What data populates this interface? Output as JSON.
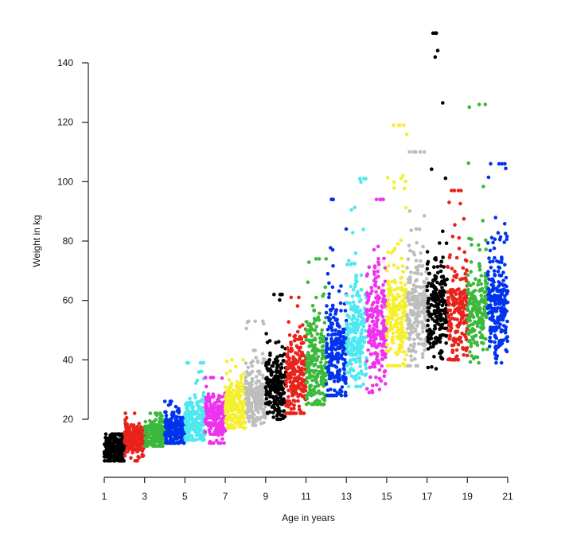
{
  "chart_data": {
    "type": "scatter",
    "title": "",
    "xlabel": "Age in years",
    "ylabel": "Weight in kg",
    "xlim": [
      1,
      21
    ],
    "ylim": [
      20,
      140
    ],
    "x_ticks": [
      "1",
      "3",
      "5",
      "7",
      "9",
      "11",
      "13",
      "15",
      "17",
      "19",
      "21"
    ],
    "y_ticks": [
      "20",
      "40",
      "60",
      "80",
      "100",
      "120",
      "140"
    ],
    "grid": false,
    "legend": "none",
    "palette": [
      "#000000",
      "#e8231c",
      "#3cb93c",
      "#0033ee",
      "#4ee8f0",
      "#ee33ee",
      "#f4f030",
      "#bdbdbd"
    ],
    "series": [
      {
        "age_group": 1,
        "x_range": [
          1.0,
          2.0
        ],
        "y_center": 10,
        "y_spread": 2.5,
        "y_min": 6,
        "y_max": 15,
        "n": 220,
        "color_index": 0
      },
      {
        "age_group": 2,
        "x_range": [
          2.0,
          3.0
        ],
        "y_center": 13,
        "y_spread": 2.5,
        "y_min": 6,
        "y_max": 22,
        "n": 220,
        "color_index": 1
      },
      {
        "age_group": 3,
        "x_range": [
          3.0,
          4.0
        ],
        "y_center": 15,
        "y_spread": 2.5,
        "y_min": 11,
        "y_max": 22,
        "n": 220,
        "color_index": 2
      },
      {
        "age_group": 4,
        "x_range": [
          4.0,
          5.0
        ],
        "y_center": 16,
        "y_spread": 3,
        "y_min": 12,
        "y_max": 26,
        "n": 220,
        "color_index": 3
      },
      {
        "age_group": 5,
        "x_range": [
          5.0,
          6.0
        ],
        "y_center": 19,
        "y_spread": 4,
        "y_min": 13,
        "y_max": 39,
        "n": 220,
        "color_index": 4
      },
      {
        "age_group": 6,
        "x_range": [
          6.0,
          7.0
        ],
        "y_center": 21,
        "y_spread": 4,
        "y_min": 12,
        "y_max": 34,
        "n": 220,
        "color_index": 5
      },
      {
        "age_group": 7,
        "x_range": [
          7.0,
          8.0
        ],
        "y_center": 24,
        "y_spread": 4.5,
        "y_min": 17,
        "y_max": 40,
        "n": 220,
        "color_index": 6
      },
      {
        "age_group": 8,
        "x_range": [
          8.0,
          9.0
        ],
        "y_center": 27,
        "y_spread": 5,
        "y_min": 18,
        "y_max": 53,
        "n": 220,
        "color_index": 7
      },
      {
        "age_group": 9,
        "x_range": [
          9.0,
          10.0
        ],
        "y_center": 31,
        "y_spread": 6,
        "y_min": 20,
        "y_max": 62,
        "n": 220,
        "color_index": 0
      },
      {
        "age_group": 10,
        "x_range": [
          10.0,
          11.0
        ],
        "y_center": 34,
        "y_spread": 7,
        "y_min": 22,
        "y_max": 61,
        "n": 220,
        "color_index": 1
      },
      {
        "age_group": 11,
        "x_range": [
          11.0,
          12.0
        ],
        "y_center": 38,
        "y_spread": 8,
        "y_min": 25,
        "y_max": 74,
        "n": 220,
        "color_index": 2
      },
      {
        "age_group": 12,
        "x_range": [
          12.0,
          13.0
        ],
        "y_center": 43,
        "y_spread": 9,
        "y_min": 28,
        "y_max": 94,
        "n": 220,
        "color_index": 3
      },
      {
        "age_group": 13,
        "x_range": [
          13.0,
          14.0
        ],
        "y_center": 48,
        "y_spread": 9,
        "y_min": 31,
        "y_max": 101,
        "n": 220,
        "color_index": 4
      },
      {
        "age_group": 14,
        "x_range": [
          14.0,
          15.0
        ],
        "y_center": 51,
        "y_spread": 9,
        "y_min": 29,
        "y_max": 94,
        "n": 220,
        "color_index": 5
      },
      {
        "age_group": 15,
        "x_range": [
          15.0,
          16.0
        ],
        "y_center": 54,
        "y_spread": 9,
        "y_min": 38,
        "y_max": 119,
        "n": 220,
        "color_index": 6
      },
      {
        "age_group": 16,
        "x_range": [
          16.0,
          17.0
        ],
        "y_center": 56,
        "y_spread": 9,
        "y_min": 38,
        "y_max": 110,
        "n": 220,
        "color_index": 7
      },
      {
        "age_group": 17,
        "x_range": [
          17.0,
          18.0
        ],
        "y_center": 57,
        "y_spread": 9,
        "y_min": 37,
        "y_max": 150,
        "n": 220,
        "color_index": 0
      },
      {
        "age_group": 18,
        "x_range": [
          18.0,
          19.0
        ],
        "y_center": 56,
        "y_spread": 8,
        "y_min": 40,
        "y_max": 97,
        "n": 200,
        "color_index": 1
      },
      {
        "age_group": 19,
        "x_range": [
          19.0,
          20.0
        ],
        "y_center": 57,
        "y_spread": 8,
        "y_min": 39,
        "y_max": 126,
        "n": 200,
        "color_index": 2
      },
      {
        "age_group": 20,
        "x_range": [
          20.0,
          21.0
        ],
        "y_center": 58,
        "y_spread": 9,
        "y_min": 39,
        "y_max": 106,
        "n": 240,
        "color_index": 3
      }
    ]
  }
}
